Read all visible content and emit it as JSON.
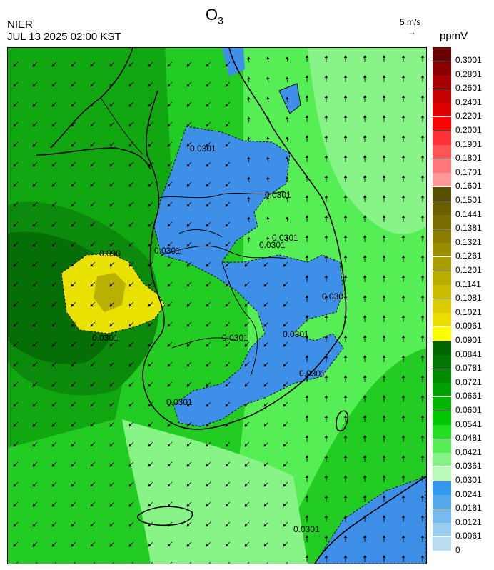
{
  "header": {
    "org": "NIER",
    "datetime": "JUL 13 2025 02:00 KST",
    "title_main": "O",
    "title_sub": "3",
    "wind_ref": "5 m/s",
    "wind_arrow": "→",
    "unit": "ppmV"
  },
  "contour_labels": [
    "0.0301",
    "0.0301",
    "0.0301",
    "0.0301",
    "0.0301",
    "0.0301",
    "0.0301",
    "0.0301",
    "0.0301",
    "0.0301",
    "0.0301",
    "0.0301",
    "0.090"
  ],
  "legend": [
    {
      "label": "0.3001",
      "color": "#6b0000"
    },
    {
      "label": "0.2801",
      "color": "#8a0000"
    },
    {
      "label": "0.2601",
      "color": "#a80000"
    },
    {
      "label": "0.2401",
      "color": "#c40000"
    },
    {
      "label": "0.2201",
      "color": "#e00000"
    },
    {
      "label": "0.2001",
      "color": "#ff0000"
    },
    {
      "label": "0.1901",
      "color": "#ff3333"
    },
    {
      "label": "0.1801",
      "color": "#ff5555"
    },
    {
      "label": "0.1701",
      "color": "#ff7777"
    },
    {
      "label": "0.1601",
      "color": "#ff9999"
    },
    {
      "label": "0.1501",
      "color": "#5a4f00"
    },
    {
      "label": "0.1441",
      "color": "#6b5f00"
    },
    {
      "label": "0.1381",
      "color": "#7a6e00"
    },
    {
      "label": "0.1321",
      "color": "#8a7d00"
    },
    {
      "label": "0.1261",
      "color": "#9a8d00"
    },
    {
      "label": "0.1201",
      "color": "#aa9c00"
    },
    {
      "label": "0.1141",
      "color": "#bbac00"
    },
    {
      "label": "0.1081",
      "color": "#ccbc00"
    },
    {
      "label": "0.1021",
      "color": "#dccc00"
    },
    {
      "label": "0.0961",
      "color": "#eedd00"
    },
    {
      "label": "0.0901",
      "color": "#ffff00"
    },
    {
      "label": "0.0841",
      "color": "#006400"
    },
    {
      "label": "0.0781",
      "color": "#007800"
    },
    {
      "label": "0.0721",
      "color": "#008c00"
    },
    {
      "label": "0.0661",
      "color": "#00a000"
    },
    {
      "label": "0.0601",
      "color": "#00b400"
    },
    {
      "label": "0.0541",
      "color": "#00c800"
    },
    {
      "label": "0.0481",
      "color": "#22dd22"
    },
    {
      "label": "0.0421",
      "color": "#55ee55"
    },
    {
      "label": "0.0361",
      "color": "#88f488"
    },
    {
      "label": "0.0301",
      "color": "#b8fab8"
    },
    {
      "label": "0.0241",
      "color": "#3399ee"
    },
    {
      "label": "0.0181",
      "color": "#55aaee"
    },
    {
      "label": "0.0121",
      "color": "#77bbee"
    },
    {
      "label": "0.0061",
      "color": "#99ccee"
    },
    {
      "label": "0",
      "color": "#bbddf2"
    }
  ]
}
